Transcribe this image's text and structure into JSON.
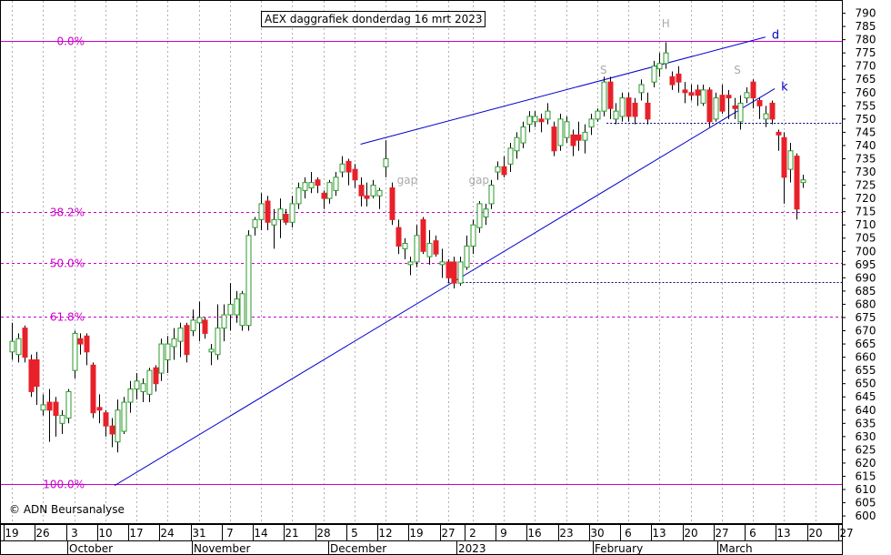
{
  "chart_data": {
    "type": "candlestick",
    "title": "AEX daggrafiek donderdag 16 mrt 2023",
    "copyright": "© ADN Beursanalyse",
    "ylim": [
      599,
      795
    ],
    "yticks": [
      600,
      605,
      610,
      615,
      620,
      625,
      630,
      635,
      640,
      645,
      650,
      655,
      660,
      665,
      670,
      675,
      680,
      685,
      690,
      695,
      700,
      705,
      710,
      715,
      720,
      725,
      730,
      735,
      740,
      745,
      750,
      755,
      760,
      765,
      770,
      775,
      780,
      785,
      790
    ],
    "xlim": [
      0,
      112.5
    ],
    "dates": [
      {
        "label": "19",
        "x": 0.0
      },
      {
        "label": "26",
        "x": 5.0
      },
      {
        "label": "3",
        "x": 10.0
      },
      {
        "label": "10",
        "x": 15.0
      },
      {
        "label": "17",
        "x": 20.0
      },
      {
        "label": "24",
        "x": 25.0
      },
      {
        "label": "31",
        "x": 30.0
      },
      {
        "label": "7",
        "x": 35.0
      },
      {
        "label": "14",
        "x": 40.0
      },
      {
        "label": "21",
        "x": 45.0
      },
      {
        "label": "28",
        "x": 50.0
      },
      {
        "label": "5",
        "x": 55.0
      },
      {
        "label": "12",
        "x": 60.0
      },
      {
        "label": "19",
        "x": 65.0
      },
      {
        "label": "27",
        "x": 70.0
      },
      {
        "label": "2",
        "x": 74.0
      },
      {
        "label": "9",
        "x": 79.0
      },
      {
        "label": "16",
        "x": 84.0
      },
      {
        "label": "23",
        "x": 89.0
      },
      {
        "label": "30",
        "x": 94.0
      },
      {
        "label": "6",
        "x": 99.0
      },
      {
        "label": "13",
        "x": 104.0
      },
      {
        "label": "20",
        "x": 109.0
      },
      {
        "label": "27",
        "x": 114.0
      },
      {
        "label": "6",
        "x": 119.0
      },
      {
        "label": "13",
        "x": 124.0
      },
      {
        "label": "20",
        "x": 129.0
      },
      {
        "label": "27",
        "x": 134.0
      }
    ],
    "months": [
      {
        "label": "October",
        "x": 10.0
      },
      {
        "label": "November",
        "x": 30.0
      },
      {
        "label": "December",
        "x": 52.0
      },
      {
        "label": "2023",
        "x": 72.5
      },
      {
        "label": "February",
        "x": 94.5
      },
      {
        "label": "March",
        "x": 114.5
      }
    ],
    "fib_levels": [
      {
        "label": "0.0%",
        "value": 779.5
      },
      {
        "label": "38.2%",
        "value": 715.0
      },
      {
        "label": "50.0%",
        "value": 695.5
      },
      {
        "label": "61.8%",
        "value": 675.5
      },
      {
        "label": "100.0%",
        "value": 612.0
      }
    ],
    "support_lines": [
      {
        "value": 748.5,
        "x_start": 95.5
      },
      {
        "value": 688.5,
        "x_start": 70.0
      }
    ],
    "trendlines": [
      {
        "label": "d",
        "x1": 56.0,
        "y1": 740.5,
        "x2": 121.0,
        "y2": 781.0
      },
      {
        "label": "k",
        "x1": 16.5,
        "y1": 611.5,
        "x2": 122.5,
        "y2": 761.5
      }
    ],
    "annotations": [
      {
        "text": "gap",
        "x": 63.5,
        "y": 727
      },
      {
        "text": "gap",
        "x": 75.0,
        "y": 727
      },
      {
        "text": "S",
        "x": 95.0,
        "y": 768.5
      },
      {
        "text": "H",
        "x": 105.0,
        "y": 786.0
      },
      {
        "text": "S",
        "x": 116.5,
        "y": 768.5
      }
    ],
    "candles": [
      {
        "x": 0.0,
        "o": 662,
        "h": 673,
        "l": 659,
        "c": 666
      },
      {
        "x": 1.0,
        "o": 661,
        "h": 669,
        "l": 658,
        "c": 667
      },
      {
        "x": 2.0,
        "o": 671,
        "h": 672,
        "l": 658,
        "c": 660
      },
      {
        "x": 3.0,
        "o": 659,
        "h": 661,
        "l": 645,
        "c": 647
      },
      {
        "x": 4.0,
        "o": 659,
        "h": 662,
        "l": 642,
        "c": 649
      },
      {
        "x": 5.0,
        "o": 640,
        "h": 646,
        "l": 638,
        "c": 642
      },
      {
        "x": 6.0,
        "o": 643,
        "h": 648,
        "l": 628,
        "c": 640
      },
      {
        "x": 7.0,
        "o": 643,
        "h": 645,
        "l": 630,
        "c": 638
      },
      {
        "x": 8.0,
        "o": 635,
        "h": 640,
        "l": 631,
        "c": 638
      },
      {
        "x": 9.0,
        "o": 637,
        "h": 648,
        "l": 635,
        "c": 647
      },
      {
        "x": 10.0,
        "o": 655,
        "h": 670,
        "l": 652,
        "c": 669
      },
      {
        "x": 11.0,
        "o": 667,
        "h": 669,
        "l": 661,
        "c": 665
      },
      {
        "x": 12.0,
        "o": 668,
        "h": 669,
        "l": 657,
        "c": 662
      },
      {
        "x": 13.0,
        "o": 657,
        "h": 658,
        "l": 637,
        "c": 639
      },
      {
        "x": 14.0,
        "o": 641,
        "h": 646,
        "l": 635,
        "c": 640
      },
      {
        "x": 15.0,
        "o": 639,
        "h": 640,
        "l": 630,
        "c": 634
      },
      {
        "x": 16.0,
        "o": 634,
        "h": 637,
        "l": 626,
        "c": 631
      },
      {
        "x": 17.0,
        "o": 628,
        "h": 644,
        "l": 624,
        "c": 640
      },
      {
        "x": 18.0,
        "o": 632,
        "h": 645,
        "l": 631,
        "c": 643
      },
      {
        "x": 19.0,
        "o": 643,
        "h": 651,
        "l": 639,
        "c": 648
      },
      {
        "x": 20.0,
        "o": 648,
        "h": 654,
        "l": 644,
        "c": 651
      },
      {
        "x": 21.0,
        "o": 647,
        "h": 652,
        "l": 643,
        "c": 650
      },
      {
        "x": 22.0,
        "o": 646,
        "h": 656,
        "l": 643,
        "c": 655
      },
      {
        "x": 23.0,
        "o": 656,
        "h": 657,
        "l": 647,
        "c": 650
      },
      {
        "x": 24.0,
        "o": 654,
        "h": 667,
        "l": 651,
        "c": 665
      },
      {
        "x": 25.0,
        "o": 659,
        "h": 668,
        "l": 654,
        "c": 665
      },
      {
        "x": 26.0,
        "o": 664,
        "h": 671,
        "l": 659,
        "c": 667
      },
      {
        "x": 27.0,
        "o": 666,
        "h": 673,
        "l": 660,
        "c": 671
      },
      {
        "x": 28.0,
        "o": 672,
        "h": 673,
        "l": 658,
        "c": 661
      },
      {
        "x": 29.0,
        "o": 670,
        "h": 678,
        "l": 668,
        "c": 674
      },
      {
        "x": 30.0,
        "o": 673,
        "h": 681,
        "l": 666,
        "c": 675
      },
      {
        "x": 31.0,
        "o": 674,
        "h": 675,
        "l": 667,
        "c": 669
      },
      {
        "x": 32.0,
        "o": 662,
        "h": 665,
        "l": 657,
        "c": 663
      },
      {
        "x": 33.0,
        "o": 661,
        "h": 680,
        "l": 659,
        "c": 671
      },
      {
        "x": 34.0,
        "o": 671,
        "h": 680,
        "l": 666,
        "c": 676
      },
      {
        "x": 35.0,
        "o": 676,
        "h": 688,
        "l": 670,
        "c": 680
      },
      {
        "x": 36.0,
        "o": 676,
        "h": 685,
        "l": 673,
        "c": 682
      },
      {
        "x": 37.0,
        "o": 672,
        "h": 685,
        "l": 670,
        "c": 684
      },
      {
        "x": 38.0,
        "o": 672,
        "h": 708,
        "l": 670,
        "c": 706
      },
      {
        "x": 39.0,
        "o": 709,
        "h": 713,
        "l": 706,
        "c": 712
      },
      {
        "x": 40.0,
        "o": 712,
        "h": 722,
        "l": 708,
        "c": 718
      },
      {
        "x": 41.0,
        "o": 719,
        "h": 721,
        "l": 708,
        "c": 711
      },
      {
        "x": 42.0,
        "o": 710,
        "h": 716,
        "l": 701,
        "c": 712
      },
      {
        "x": 43.0,
        "o": 712,
        "h": 720,
        "l": 705,
        "c": 716
      },
      {
        "x": 44.0,
        "o": 714,
        "h": 716,
        "l": 710,
        "c": 711
      },
      {
        "x": 45.0,
        "o": 711,
        "h": 721,
        "l": 709,
        "c": 718
      },
      {
        "x": 46.0,
        "o": 718,
        "h": 726,
        "l": 716,
        "c": 724
      },
      {
        "x": 47.0,
        "o": 723,
        "h": 728,
        "l": 720,
        "c": 726
      },
      {
        "x": 48.0,
        "o": 724,
        "h": 730,
        "l": 722,
        "c": 726
      },
      {
        "x": 49.0,
        "o": 727,
        "h": 728,
        "l": 722,
        "c": 725
      },
      {
        "x": 50.0,
        "o": 722,
        "h": 723,
        "l": 716,
        "c": 720
      },
      {
        "x": 51.0,
        "o": 720,
        "h": 727,
        "l": 718,
        "c": 726
      },
      {
        "x": 52.0,
        "o": 723,
        "h": 730,
        "l": 721,
        "c": 728
      },
      {
        "x": 53.0,
        "o": 730,
        "h": 736,
        "l": 728,
        "c": 733
      },
      {
        "x": 54.0,
        "o": 734,
        "h": 735,
        "l": 725,
        "c": 730
      },
      {
        "x": 55.0,
        "o": 731,
        "h": 733,
        "l": 724,
        "c": 727
      },
      {
        "x": 56.0,
        "o": 725,
        "h": 728,
        "l": 717,
        "c": 721
      },
      {
        "x": 57.0,
        "o": 721,
        "h": 726,
        "l": 717,
        "c": 720
      },
      {
        "x": 58.0,
        "o": 721,
        "h": 727,
        "l": 720,
        "c": 725
      },
      {
        "x": 59.0,
        "o": 721,
        "h": 724,
        "l": 716,
        "c": 723
      },
      {
        "x": 60.0,
        "o": 732,
        "h": 742,
        "l": 728,
        "c": 735
      },
      {
        "x": 61.0,
        "o": 724,
        "h": 726,
        "l": 710,
        "c": 712
      },
      {
        "x": 62.0,
        "o": 709,
        "h": 712,
        "l": 699,
        "c": 702
      },
      {
        "x": 63.0,
        "o": 701,
        "h": 705,
        "l": 697,
        "c": 703
      },
      {
        "x": 64.0,
        "o": 695,
        "h": 698,
        "l": 691,
        "c": 696
      },
      {
        "x": 65.0,
        "o": 696,
        "h": 710,
        "l": 694,
        "c": 706
      },
      {
        "x": 66.0,
        "o": 712,
        "h": 713,
        "l": 699,
        "c": 700
      },
      {
        "x": 67.0,
        "o": 698,
        "h": 708,
        "l": 695,
        "c": 703
      },
      {
        "x": 68.0,
        "o": 704,
        "h": 706,
        "l": 698,
        "c": 699
      },
      {
        "x": 69.0,
        "o": 695,
        "h": 701,
        "l": 690,
        "c": 696
      },
      {
        "x": 70.0,
        "o": 696,
        "h": 697,
        "l": 688,
        "c": 690
      },
      {
        "x": 71.0,
        "o": 696,
        "h": 698,
        "l": 686,
        "c": 688
      },
      {
        "x": 72.0,
        "o": 688,
        "h": 698,
        "l": 687,
        "c": 696
      },
      {
        "x": 73.0,
        "o": 694,
        "h": 706,
        "l": 693,
        "c": 702
      },
      {
        "x": 74.0,
        "o": 702,
        "h": 712,
        "l": 699,
        "c": 710
      },
      {
        "x": 75.0,
        "o": 709,
        "h": 719,
        "l": 707,
        "c": 718
      },
      {
        "x": 76.0,
        "o": 713,
        "h": 718,
        "l": 710,
        "c": 716
      },
      {
        "x": 77.0,
        "o": 718,
        "h": 727,
        "l": 716,
        "c": 725
      },
      {
        "x": 78.0,
        "o": 730,
        "h": 734,
        "l": 727,
        "c": 732
      },
      {
        "x": 79.0,
        "o": 732,
        "h": 736,
        "l": 728,
        "c": 729
      },
      {
        "x": 80.0,
        "o": 733,
        "h": 741,
        "l": 730,
        "c": 739
      },
      {
        "x": 81.0,
        "o": 738,
        "h": 745,
        "l": 735,
        "c": 743
      },
      {
        "x": 82.0,
        "o": 741,
        "h": 749,
        "l": 739,
        "c": 747
      },
      {
        "x": 83.0,
        "o": 748,
        "h": 753,
        "l": 745,
        "c": 751
      },
      {
        "x": 84.0,
        "o": 749,
        "h": 753,
        "l": 747,
        "c": 751
      },
      {
        "x": 85.0,
        "o": 750,
        "h": 752,
        "l": 745,
        "c": 749
      },
      {
        "x": 86.0,
        "o": 750,
        "h": 756,
        "l": 748,
        "c": 753
      },
      {
        "x": 87.0,
        "o": 747,
        "h": 749,
        "l": 736,
        "c": 738
      },
      {
        "x": 88.0,
        "o": 740,
        "h": 752,
        "l": 738,
        "c": 750
      },
      {
        "x": 89.0,
        "o": 743,
        "h": 751,
        "l": 741,
        "c": 749
      },
      {
        "x": 90.0,
        "o": 744,
        "h": 746,
        "l": 736,
        "c": 740
      },
      {
        "x": 91.0,
        "o": 744,
        "h": 749,
        "l": 738,
        "c": 742
      },
      {
        "x": 92.0,
        "o": 742,
        "h": 748,
        "l": 737,
        "c": 745
      },
      {
        "x": 93.0,
        "o": 747,
        "h": 752,
        "l": 744,
        "c": 750
      },
      {
        "x": 94.0,
        "o": 750,
        "h": 754,
        "l": 749,
        "c": 753
      },
      {
        "x": 95.0,
        "o": 753,
        "h": 766,
        "l": 751,
        "c": 764
      },
      {
        "x": 96.0,
        "o": 764,
        "h": 766,
        "l": 750,
        "c": 754
      },
      {
        "x": 97.0,
        "o": 750,
        "h": 756,
        "l": 748,
        "c": 753
      },
      {
        "x": 98.0,
        "o": 751,
        "h": 760,
        "l": 749,
        "c": 758
      },
      {
        "x": 99.0,
        "o": 758,
        "h": 760,
        "l": 749,
        "c": 751
      },
      {
        "x": 100.0,
        "o": 756,
        "h": 758,
        "l": 748,
        "c": 751
      },
      {
        "x": 101.0,
        "o": 760,
        "h": 765,
        "l": 757,
        "c": 763
      },
      {
        "x": 102.0,
        "o": 756,
        "h": 760,
        "l": 748,
        "c": 750
      },
      {
        "x": 103.0,
        "o": 764,
        "h": 772,
        "l": 762,
        "c": 770
      },
      {
        "x": 104.0,
        "o": 769,
        "h": 775,
        "l": 766,
        "c": 771
      },
      {
        "x": 105.0,
        "o": 771,
        "h": 779,
        "l": 769,
        "c": 775
      },
      {
        "x": 106.0,
        "o": 766,
        "h": 768,
        "l": 761,
        "c": 763
      },
      {
        "x": 107.0,
        "o": 767,
        "h": 770,
        "l": 760,
        "c": 764
      },
      {
        "x": 108.0,
        "o": 761,
        "h": 764,
        "l": 756,
        "c": 760
      },
      {
        "x": 109.0,
        "o": 760,
        "h": 763,
        "l": 757,
        "c": 759
      },
      {
        "x": 110.0,
        "o": 761,
        "h": 763,
        "l": 755,
        "c": 759
      },
      {
        "x": 111.0,
        "o": 756,
        "h": 763,
        "l": 755,
        "c": 761
      },
      {
        "x": 112.0,
        "o": 761,
        "h": 762,
        "l": 747,
        "c": 749
      },
      {
        "x": 113.0,
        "o": 750,
        "h": 760,
        "l": 749,
        "c": 758
      },
      {
        "x": 114.0,
        "o": 759,
        "h": 763,
        "l": 752,
        "c": 753
      },
      {
        "x": 115.0,
        "o": 759,
        "h": 761,
        "l": 750,
        "c": 758
      },
      {
        "x": 116.0,
        "o": 755,
        "h": 758,
        "l": 750,
        "c": 754
      },
      {
        "x": 117.0,
        "o": 749,
        "h": 759,
        "l": 746,
        "c": 756
      },
      {
        "x": 118.0,
        "o": 758,
        "h": 762,
        "l": 756,
        "c": 760
      },
      {
        "x": 119.0,
        "o": 764,
        "h": 765,
        "l": 754,
        "c": 758
      },
      {
        "x": 120.0,
        "o": 757,
        "h": 758,
        "l": 750,
        "c": 755
      },
      {
        "x": 121.0,
        "o": 750,
        "h": 755,
        "l": 747,
        "c": 752
      },
      {
        "x": 122.0,
        "o": 756,
        "h": 757,
        "l": 748,
        "c": 750
      },
      {
        "x": 123.0,
        "o": 745,
        "h": 746,
        "l": 738,
        "c": 744
      },
      {
        "x": 124.0,
        "o": 743,
        "h": 745,
        "l": 718,
        "c": 728
      },
      {
        "x": 125.0,
        "o": 731,
        "h": 741,
        "l": 726,
        "c": 738
      },
      {
        "x": 126.0,
        "o": 736,
        "h": 737,
        "l": 712,
        "c": 716
      },
      {
        "x": 127.0,
        "o": 726,
        "h": 729,
        "l": 724,
        "c": 727
      }
    ]
  }
}
